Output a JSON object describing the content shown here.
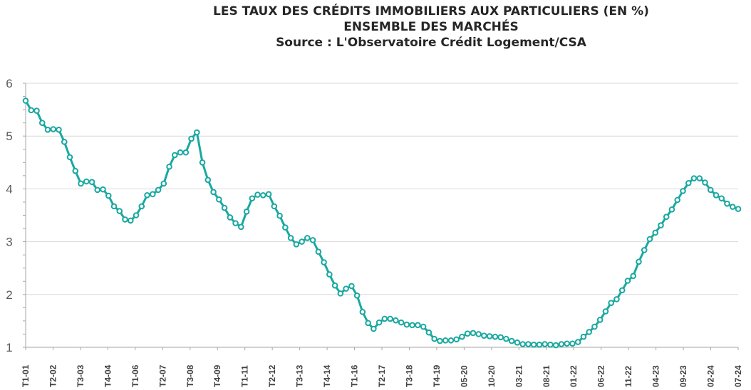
{
  "chart_data": {
    "type": "line",
    "title": "LES TAUX DES CRÉDITS IMMOBILIERS AUX PARTICULIERS (EN %)",
    "subtitle": "ENSEMBLE DES MARCHÉS",
    "source": "Source : L'Observatoire Crédit Logement/CSA",
    "xlabel": "",
    "ylabel": "",
    "ylim": [
      1,
      6
    ],
    "y_ticks": [
      "1",
      "2",
      "3",
      "4",
      "5",
      "6"
    ],
    "grid": true,
    "legend": "none",
    "x_tick_labels": [
      "T1-01",
      "T2-02",
      "T3-03",
      "T4-04",
      "T1-06",
      "T2-07",
      "T3-08",
      "T4-09",
      "T1-11",
      "T2-12",
      "T3-13",
      "T4-14",
      "T1-16",
      "T2-17",
      "T3-18",
      "T4-19",
      "05-20",
      "10-20",
      "03-21",
      "08-21",
      "01-22",
      "06-22",
      "11-22",
      "04-23",
      "09-23",
      "02-24",
      "07-24"
    ],
    "line_color": "#1aa8a0",
    "series": [
      {
        "values": [
          5.67,
          5.49,
          5.48,
          5.25,
          5.12,
          5.13,
          5.12,
          4.89,
          4.6,
          4.34,
          4.1,
          4.14,
          4.13,
          3.98,
          3.99,
          3.87,
          3.67,
          3.58,
          3.42,
          3.4,
          3.5,
          3.67,
          3.88,
          3.9,
          3.98,
          4.1,
          4.42,
          4.64,
          4.69,
          4.69,
          4.95,
          5.07,
          4.5,
          4.17,
          3.94,
          3.8,
          3.64,
          3.46,
          3.35,
          3.28,
          3.57,
          3.82,
          3.89,
          3.88,
          3.9,
          3.67,
          3.49,
          3.27,
          3.07,
          2.95,
          3.0,
          3.07,
          3.03,
          2.81,
          2.61,
          2.38,
          2.17,
          2.02,
          2.11,
          2.16,
          1.98,
          1.67,
          1.46,
          1.35,
          1.47,
          1.54,
          1.54,
          1.51,
          1.47,
          1.43,
          1.42,
          1.42,
          1.39,
          1.28,
          1.16,
          1.12,
          1.13,
          1.13,
          1.15,
          1.2,
          1.26,
          1.27,
          1.25,
          1.22,
          1.21,
          1.2,
          1.19,
          1.16,
          1.12,
          1.09,
          1.06,
          1.06,
          1.05,
          1.05,
          1.06,
          1.05,
          1.04,
          1.06,
          1.07,
          1.07,
          1.1,
          1.2,
          1.29,
          1.39,
          1.52,
          1.68,
          1.84,
          1.91,
          2.08,
          2.26,
          2.35,
          2.62,
          2.84,
          3.05,
          3.17,
          3.31,
          3.47,
          3.61,
          3.79,
          3.96,
          4.11,
          4.2,
          4.2,
          4.12,
          3.98,
          3.88,
          3.82,
          3.72,
          3.66,
          3.62
        ]
      }
    ]
  }
}
